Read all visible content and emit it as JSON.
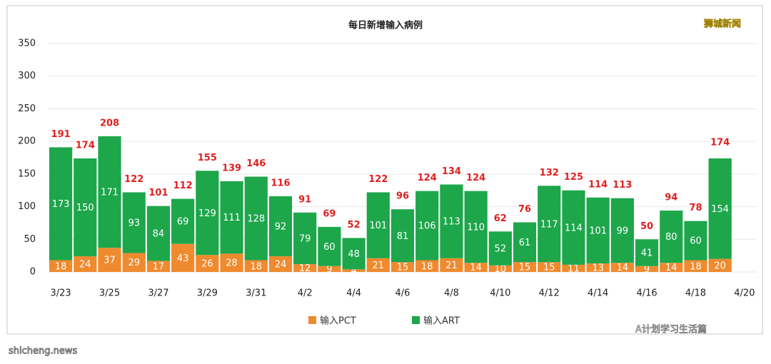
{
  "chart_data": {
    "type": "stacked-bar",
    "title": "每日新增输入病例",
    "categories": [
      "3/23",
      null,
      "3/25",
      null,
      "3/27",
      null,
      "3/29",
      null,
      "3/31",
      null,
      "4/2",
      null,
      "4/4",
      null,
      "4/6",
      null,
      "4/8",
      null,
      "4/10",
      null,
      "4/12",
      null,
      "4/14",
      null,
      "4/16",
      null,
      "4/18",
      null,
      "4/20"
    ],
    "series": [
      {
        "name": "输入PCT",
        "color": "#ef8a2e",
        "values": [
          18,
          24,
          37,
          29,
          17,
          43,
          26,
          28,
          18,
          24,
          12,
          9,
          4,
          21,
          15,
          18,
          21,
          14,
          10,
          15,
          15,
          11,
          13,
          14,
          9,
          14,
          18,
          20,
          null
        ]
      },
      {
        "name": "输入ART",
        "color": "#1ea64b",
        "values": [
          173,
          150,
          171,
          93,
          84,
          69,
          129,
          111,
          128,
          92,
          79,
          60,
          48,
          101,
          81,
          106,
          113,
          110,
          52,
          61,
          117,
          114,
          101,
          99,
          41,
          80,
          60,
          154,
          null
        ]
      }
    ],
    "totals": [
      191,
      174,
      208,
      122,
      101,
      112,
      155,
      139,
      146,
      116,
      91,
      69,
      52,
      122,
      96,
      124,
      134,
      124,
      62,
      76,
      132,
      125,
      114,
      113,
      50,
      94,
      78,
      174,
      null
    ],
    "total_color": "#e02020",
    "ylim": [
      0,
      350
    ],
    "yticks": [
      0,
      50,
      100,
      150,
      200,
      250,
      300,
      350
    ],
    "grid": true,
    "legend": "bottom"
  },
  "watermarks": {
    "brand": "狮城新闻",
    "account": "A计划学习生活篇",
    "site": "shicheng.news"
  }
}
